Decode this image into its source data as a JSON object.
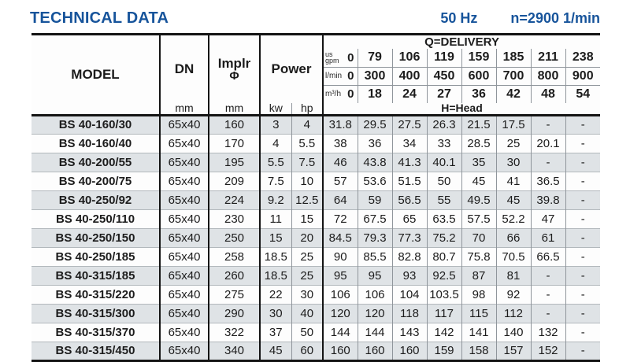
{
  "title": "TECHNICAL DATA",
  "frequency": "50 Hz",
  "speed": "n=2900 1/min",
  "colors": {
    "accent": "#17549b",
    "row_alt": "#dfe3e6"
  },
  "table": {
    "headers": {
      "model": "MODEL",
      "dn": "DN",
      "implr_line1": "Implr",
      "implr_line2": "Φ",
      "power": "Power",
      "dn_unit": "mm",
      "implr_unit": "mm",
      "kw_unit": "kw",
      "hp_unit": "hp",
      "delivery_title": "Q=DELIVERY",
      "head_title": "H=Head"
    },
    "delivery_header_rows": [
      {
        "unit_lines": [
          "us",
          "gpm"
        ],
        "zero": "0",
        "values": [
          "79",
          "106",
          "119",
          "159",
          "185",
          "211",
          "238"
        ]
      },
      {
        "unit_lines": [
          "l/min"
        ],
        "zero": "0",
        "values": [
          "300",
          "400",
          "450",
          "600",
          "700",
          "800",
          "900"
        ]
      },
      {
        "unit_lines": [
          "m³/h"
        ],
        "zero": "0",
        "values": [
          "18",
          "24",
          "27",
          "36",
          "42",
          "48",
          "54"
        ]
      }
    ],
    "rows": [
      {
        "model": "BS 40-160/30",
        "dn": "65x40",
        "implr": "160",
        "kw": "3",
        "hp": "4",
        "heads": [
          "31.8",
          "29.5",
          "27.5",
          "26.3",
          "21.5",
          "17.5",
          "-",
          "-"
        ]
      },
      {
        "model": "BS 40-160/40",
        "dn": "65x40",
        "implr": "170",
        "kw": "4",
        "hp": "5.5",
        "heads": [
          "38",
          "36",
          "34",
          "33",
          "28.5",
          "25",
          "20.1",
          "-"
        ]
      },
      {
        "model": "BS 40-200/55",
        "dn": "65x40",
        "implr": "195",
        "kw": "5.5",
        "hp": "7.5",
        "heads": [
          "46",
          "43.8",
          "41.3",
          "40.1",
          "35",
          "30",
          "-",
          "-"
        ]
      },
      {
        "model": "BS 40-200/75",
        "dn": "65x40",
        "implr": "209",
        "kw": "7.5",
        "hp": "10",
        "heads": [
          "57",
          "53.6",
          "51.5",
          "50",
          "45",
          "41",
          "36.5",
          "-"
        ]
      },
      {
        "model": "BS 40-250/92",
        "dn": "65x40",
        "implr": "224",
        "kw": "9.2",
        "hp": "12.5",
        "heads": [
          "64",
          "59",
          "56.5",
          "55",
          "49.5",
          "45",
          "39.8",
          "-"
        ]
      },
      {
        "model": "BS 40-250/110",
        "dn": "65x40",
        "implr": "230",
        "kw": "11",
        "hp": "15",
        "heads": [
          "72",
          "67.5",
          "65",
          "63.5",
          "57.5",
          "52.2",
          "47",
          "-"
        ]
      },
      {
        "model": "BS 40-250/150",
        "dn": "65x40",
        "implr": "250",
        "kw": "15",
        "hp": "20",
        "heads": [
          "84.5",
          "79.3",
          "77.3",
          "75.2",
          "70",
          "66",
          "61",
          "-"
        ]
      },
      {
        "model": "BS 40-250/185",
        "dn": "65x40",
        "implr": "258",
        "kw": "18.5",
        "hp": "25",
        "heads": [
          "90",
          "85.5",
          "82.8",
          "80.7",
          "75.8",
          "70.5",
          "66.5",
          "-"
        ]
      },
      {
        "model": "BS 40-315/185",
        "dn": "65x40",
        "implr": "260",
        "kw": "18.5",
        "hp": "25",
        "heads": [
          "95",
          "95",
          "93",
          "92.5",
          "87",
          "81",
          "-",
          "-"
        ]
      },
      {
        "model": "BS 40-315/220",
        "dn": "65x40",
        "implr": "275",
        "kw": "22",
        "hp": "30",
        "heads": [
          "106",
          "106",
          "104",
          "103.5",
          "98",
          "92",
          "-",
          "-"
        ]
      },
      {
        "model": "BS 40-315/300",
        "dn": "65x40",
        "implr": "290",
        "kw": "30",
        "hp": "40",
        "heads": [
          "120",
          "120",
          "118",
          "117",
          "115",
          "112",
          "-",
          "-"
        ]
      },
      {
        "model": "BS 40-315/370",
        "dn": "65x40",
        "implr": "322",
        "kw": "37",
        "hp": "50",
        "heads": [
          "144",
          "144",
          "143",
          "142",
          "141",
          "140",
          "132",
          "-"
        ]
      },
      {
        "model": "BS 40-315/450",
        "dn": "65x40",
        "implr": "340",
        "kw": "45",
        "hp": "60",
        "heads": [
          "160",
          "160",
          "160",
          "159",
          "158",
          "157",
          "152",
          "-"
        ]
      }
    ]
  }
}
